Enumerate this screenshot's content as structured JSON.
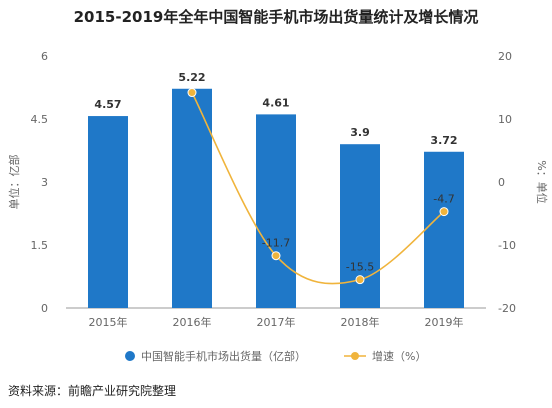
{
  "title": "2015-2019年全年中国智能手机市场出货量统计及增长情况",
  "source": "资料来源：前瞻产业研究院整理",
  "chart_data": {
    "type": "bar",
    "categories": [
      "2015年",
      "2016年",
      "2017年",
      "2018年",
      "2019年"
    ],
    "series": [
      {
        "name": "中国智能手机市场出货量（亿部）",
        "type": "bar",
        "axis": "left",
        "values": [
          4.57,
          5.22,
          4.61,
          3.9,
          3.72
        ],
        "labels": [
          "4.57",
          "5.22",
          "4.61",
          "3.9",
          "3.72"
        ],
        "color": "#1f78c8"
      },
      {
        "name": "增速（%）",
        "type": "line",
        "axis": "right",
        "values": [
          null,
          14.2,
          -11.7,
          -15.5,
          -4.7
        ],
        "labels": [
          "",
          "",
          "-11.7",
          "-15.5",
          "-4.7"
        ],
        "color": "#f0b43c"
      }
    ],
    "ylabel_left": "单位：亿部",
    "ylabel_right": "%：单位",
    "ylim_left": [
      0,
      6
    ],
    "yticks_left": [
      "0",
      "1.5",
      "3",
      "4.5",
      "6"
    ],
    "ylim_right": [
      -20,
      20
    ],
    "yticks_right": [
      "-20",
      "-10",
      "0",
      "10",
      "20"
    ],
    "grid": false,
    "legend_position": "bottom"
  }
}
